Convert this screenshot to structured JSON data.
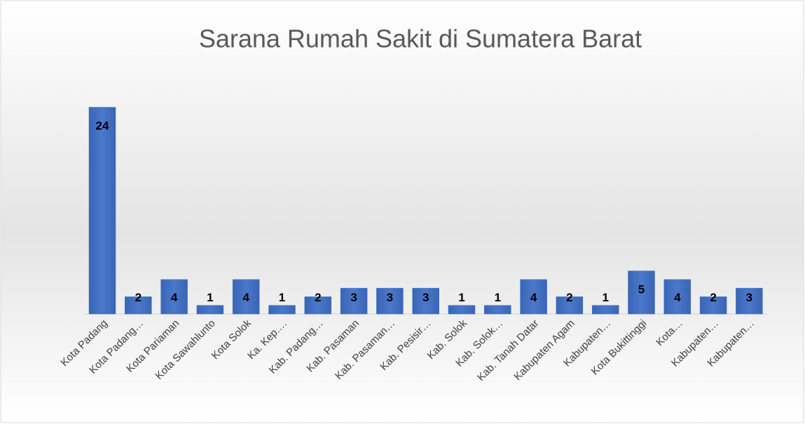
{
  "chart_data": {
    "type": "bar",
    "title": "Sarana Rumah Sakit di Sumatera Barat",
    "categories": [
      "Kota Padang",
      "Kota Padang…",
      "Kota Pariaman",
      "Kota Sawahlunto",
      "Kota Solok",
      "Ka. Kep.…",
      "Kab. Padang…",
      "Kab. Pasaman",
      "Kab. Pasaman…",
      "Kab. Pesisir…",
      "Kab. Solok",
      "Kab. Solok…",
      "Kab. Tanah Datar",
      "Kabupaten Agam",
      "Kabupaten…",
      "Kota Bukittinggi",
      "Kota…",
      "Kabupaten…",
      "Kabupaten…"
    ],
    "values": [
      24,
      2,
      4,
      1,
      4,
      1,
      2,
      3,
      3,
      3,
      1,
      1,
      4,
      2,
      1,
      5,
      4,
      2,
      3
    ],
    "color": "#4472c4"
  }
}
